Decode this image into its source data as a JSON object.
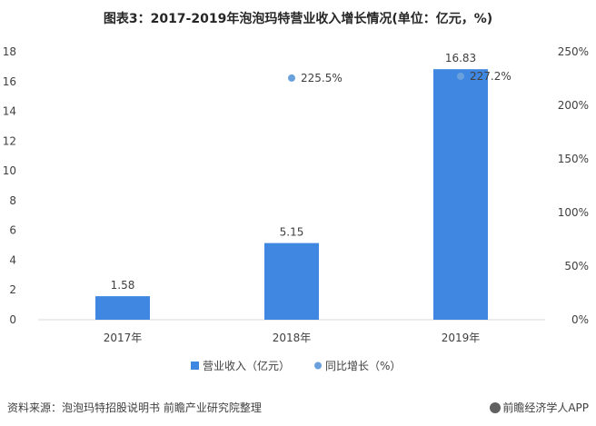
{
  "title": "图表3：2017-2019年泡泡玛特营业收入增长情况(单位：亿元，%)",
  "footer": {
    "source": "资料来源：泡泡玛特招股说明书 前瞻产业研究院整理",
    "brand": "前瞻经济学人APP",
    "brand_icon": "brand-logo-icon"
  },
  "chart_data": {
    "type": "bar",
    "categories": [
      "2017年",
      "2018年",
      "2019年"
    ],
    "series": [
      {
        "name": "营业收入（亿元）",
        "type": "bar",
        "axis": "left",
        "values": [
          1.58,
          5.15,
          16.83
        ],
        "labels": [
          "1.58",
          "5.15",
          "16.83"
        ],
        "color": "#3f87e0"
      },
      {
        "name": "同比增长（%）",
        "type": "scatter",
        "axis": "right",
        "values": [
          null,
          225.5,
          227.2
        ],
        "labels": [
          "",
          "225.5%",
          "227.2%"
        ],
        "color": "#6aa1dc"
      }
    ],
    "left_axis": {
      "min": 0,
      "max": 18,
      "ticks": [
        "0",
        "2",
        "4",
        "6",
        "8",
        "10",
        "12",
        "14",
        "16",
        "18"
      ]
    },
    "right_axis": {
      "min": 0,
      "max": 250,
      "ticks": [
        "0%",
        "50%",
        "100%",
        "150%",
        "200%",
        "250%"
      ]
    },
    "legend_position": "bottom",
    "grid": false
  }
}
